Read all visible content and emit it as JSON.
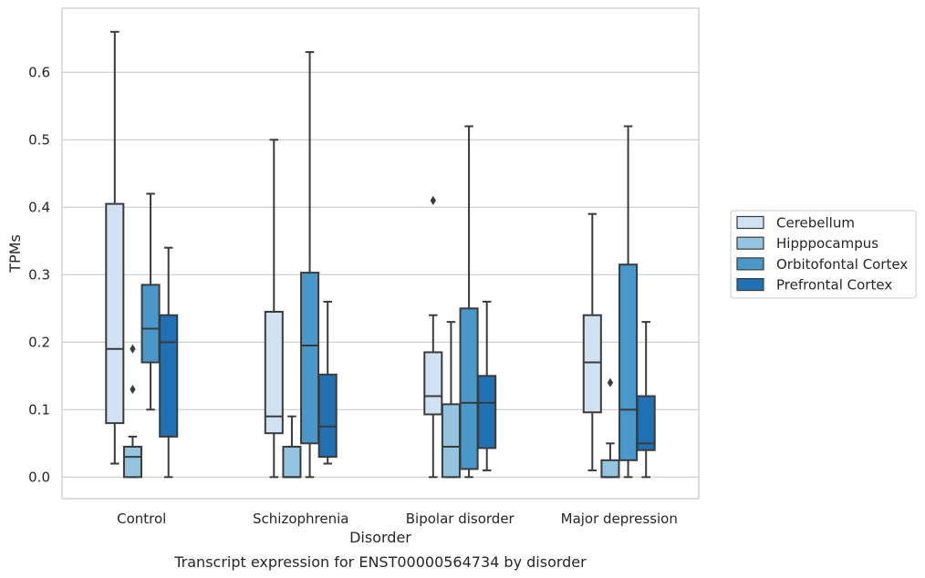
{
  "chart_data": {
    "type": "boxplot",
    "caption": "Transcript expression for ENST00000564734 by disorder",
    "xlabel": "Disorder",
    "ylabel": "TPMs",
    "ylim": [
      -0.032,
      0.695
    ],
    "yticks": [
      0.0,
      0.1,
      0.2,
      0.3,
      0.4,
      0.5,
      0.6
    ],
    "ytick_labels": [
      "0.0",
      "0.1",
      "0.2",
      "0.3",
      "0.4",
      "0.5",
      "0.6"
    ],
    "grid": "horizontal",
    "legend_position": "right",
    "categories": [
      "Control",
      "Schizophrenia",
      "Bipolar disorder",
      "Major depression"
    ],
    "series": [
      {
        "name": "Cerebellum",
        "color": "#d0e1f2",
        "boxes": [
          {
            "whislo": 0.02,
            "q1": 0.08,
            "med": 0.19,
            "q3": 0.405,
            "whishi": 0.66,
            "fliers": []
          },
          {
            "whislo": 0.0,
            "q1": 0.065,
            "med": 0.09,
            "q3": 0.245,
            "whishi": 0.5,
            "fliers": []
          },
          {
            "whislo": 0.0,
            "q1": 0.093,
            "med": 0.12,
            "q3": 0.185,
            "whishi": 0.24,
            "fliers": [
              0.41
            ]
          },
          {
            "whislo": 0.01,
            "q1": 0.096,
            "med": 0.17,
            "q3": 0.24,
            "whishi": 0.39,
            "fliers": []
          }
        ]
      },
      {
        "name": "Hipppocampus",
        "color": "#94c4df",
        "boxes": [
          {
            "whislo": 0.0,
            "q1": 0.0,
            "med": 0.03,
            "q3": 0.045,
            "whishi": 0.06,
            "fliers": [
              0.13,
              0.19
            ]
          },
          {
            "whislo": 0.0,
            "q1": 0.0,
            "med": 0.0,
            "q3": 0.045,
            "whishi": 0.09,
            "fliers": []
          },
          {
            "whislo": 0.0,
            "q1": 0.0,
            "med": 0.045,
            "q3": 0.108,
            "whishi": 0.23,
            "fliers": []
          },
          {
            "whislo": 0.0,
            "q1": 0.0,
            "med": 0.0,
            "q3": 0.025,
            "whishi": 0.05,
            "fliers": [
              0.14
            ]
          }
        ]
      },
      {
        "name": "Orbitofontal Cortex",
        "color": "#4a98c9",
        "boxes": [
          {
            "whislo": 0.1,
            "q1": 0.17,
            "med": 0.22,
            "q3": 0.285,
            "whishi": 0.42,
            "fliers": []
          },
          {
            "whislo": 0.0,
            "q1": 0.05,
            "med": 0.195,
            "q3": 0.303,
            "whishi": 0.63,
            "fliers": []
          },
          {
            "whislo": 0.0,
            "q1": 0.012,
            "med": 0.11,
            "q3": 0.25,
            "whishi": 0.52,
            "fliers": []
          },
          {
            "whislo": 0.0,
            "q1": 0.025,
            "med": 0.1,
            "q3": 0.315,
            "whishi": 0.52,
            "fliers": []
          }
        ]
      },
      {
        "name": "Prefrontal Cortex",
        "color": "#2070b4",
        "boxes": [
          {
            "whislo": 0.0,
            "q1": 0.06,
            "med": 0.2,
            "q3": 0.24,
            "whishi": 0.34,
            "fliers": []
          },
          {
            "whislo": 0.02,
            "q1": 0.03,
            "med": 0.075,
            "q3": 0.152,
            "whishi": 0.26,
            "fliers": []
          },
          {
            "whislo": 0.01,
            "q1": 0.043,
            "med": 0.11,
            "q3": 0.15,
            "whishi": 0.26,
            "fliers": []
          },
          {
            "whislo": 0.0,
            "q1": 0.04,
            "med": 0.05,
            "q3": 0.12,
            "whishi": 0.23,
            "fliers": []
          }
        ]
      }
    ]
  }
}
